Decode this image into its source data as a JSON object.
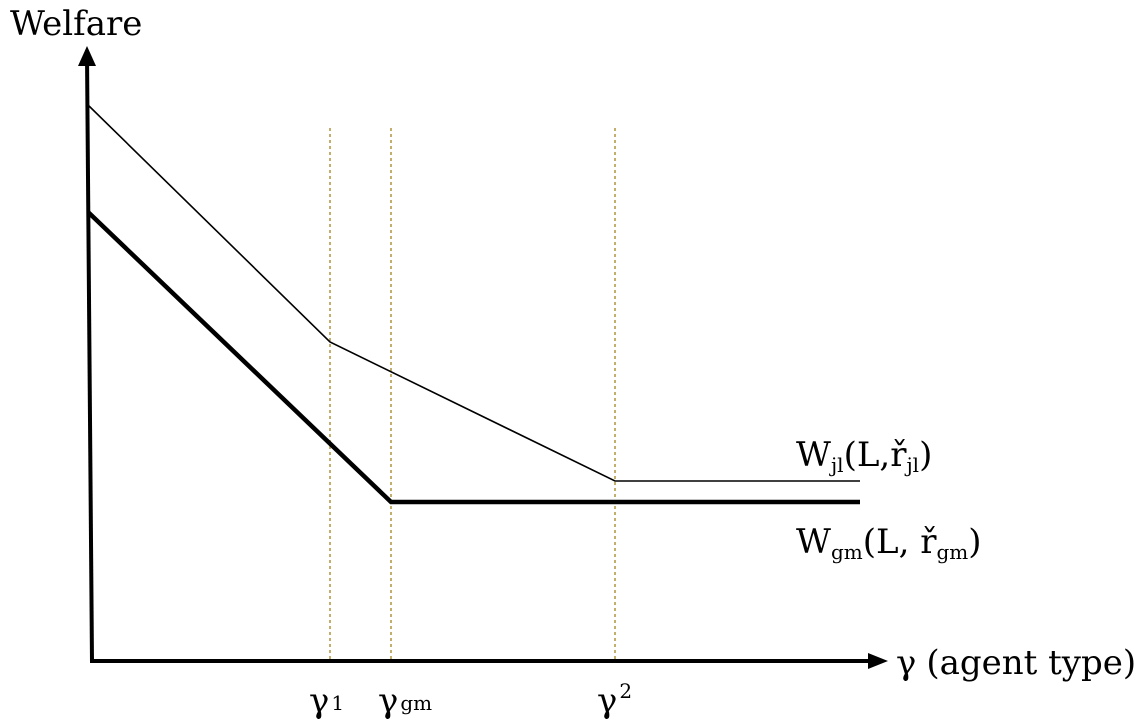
{
  "diagram": {
    "y_axis_label": "Welfare",
    "x_axis_label_symbol": "γ",
    "x_axis_label_text": "(agent type)",
    "gamma_symbol": "γ",
    "markers": {
      "gamma1_sub": "1",
      "gammagm_sub": "gm",
      "gamma2_sub": "2"
    },
    "curves": {
      "jl": {
        "prefix": "W",
        "sub1": "jl",
        "mid": "(L,ř",
        "sub2": "jl",
        "suffix": ")"
      },
      "gm": {
        "prefix": "W",
        "sub1": "gm",
        "mid": "(L, ř",
        "sub2": "gm",
        "suffix": ")"
      }
    },
    "colors": {
      "axes": "#000000",
      "curves": "#000000",
      "guide_lines": "#b59a4a"
    }
  }
}
